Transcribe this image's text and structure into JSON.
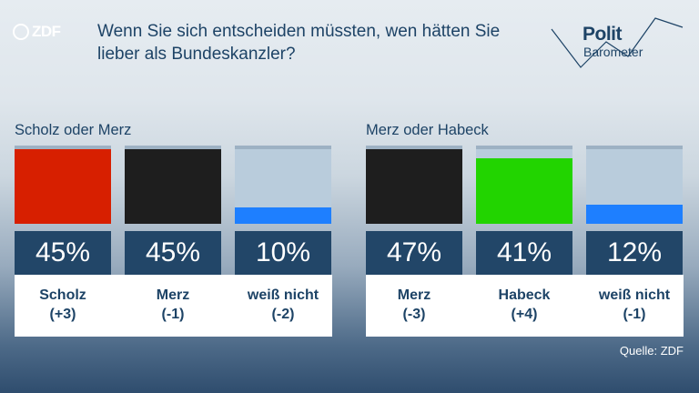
{
  "header": {
    "logo_text": "ZDF",
    "title": "Wenn Sie sich entscheiden müssten, wen hätten Sie lieber als Bundeskanzler?",
    "brand_line1": "Polit",
    "brand_line2": "Barometer"
  },
  "colors": {
    "title_blue": "#1d4366",
    "value_box": "#224668",
    "track": "#b9ccdc",
    "scholz_red": "#d71f00",
    "black": "#1e1e1e",
    "green": "#22d400",
    "dont_know_blue": "#1e7fff"
  },
  "chart_data": [
    {
      "type": "bar",
      "title": "Scholz oder Merz",
      "categories": [
        "Scholz",
        "Merz",
        "weiß nicht"
      ],
      "values": [
        45,
        45,
        10
      ],
      "value_labels": [
        "45%",
        "45%",
        "10%"
      ],
      "changes": [
        "(+3)",
        "(-1)",
        "(-2)"
      ],
      "colors": [
        "#d71f00",
        "#1e1e1e",
        "#1e7fff"
      ],
      "ylim": [
        0,
        45
      ]
    },
    {
      "type": "bar",
      "title": "Merz oder Habeck",
      "categories": [
        "Merz",
        "Habeck",
        "weiß nicht"
      ],
      "values": [
        47,
        41,
        12
      ],
      "value_labels": [
        "47%",
        "41%",
        "12%"
      ],
      "changes": [
        "(-3)",
        "(+4)",
        "(-1)"
      ],
      "colors": [
        "#1e1e1e",
        "#22d400",
        "#1e7fff"
      ],
      "ylim": [
        0,
        47
      ]
    }
  ],
  "footer": {
    "source": "Quelle: ZDF"
  }
}
